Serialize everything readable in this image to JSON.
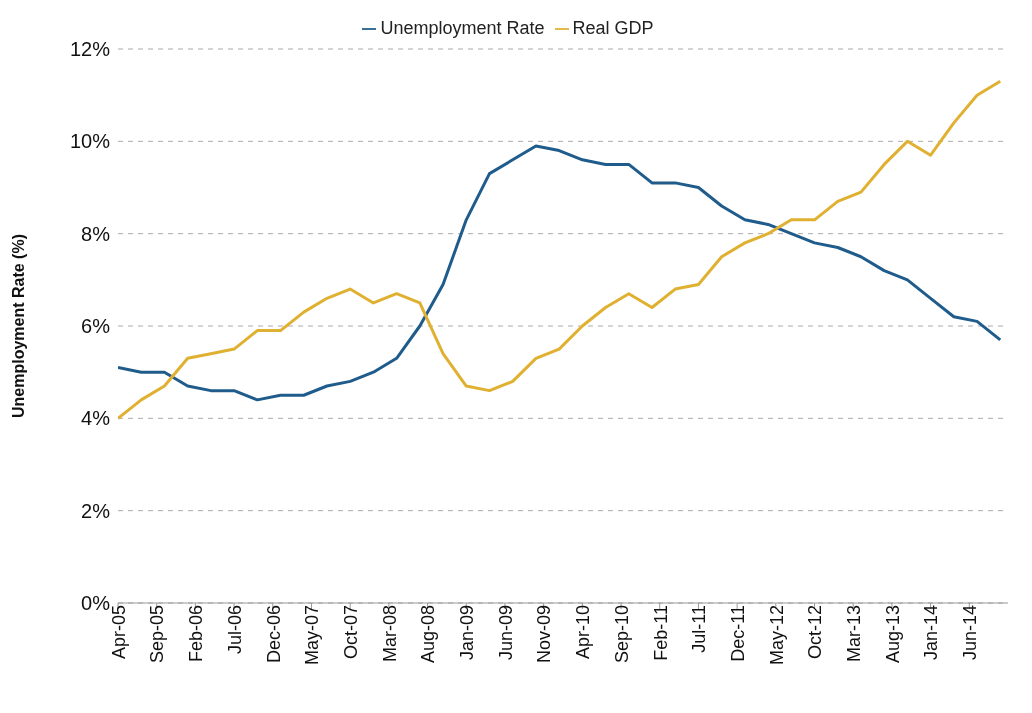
{
  "chart_data": {
    "type": "line",
    "ylabel": "Unemployment Rate (%)",
    "x": [
      "2005-04",
      "2005-07",
      "2005-10",
      "2006-01",
      "2006-04",
      "2006-07",
      "2006-10",
      "2007-01",
      "2007-04",
      "2007-07",
      "2007-10",
      "2008-01",
      "2008-04",
      "2008-07",
      "2008-10",
      "2009-01",
      "2009-04",
      "2009-07",
      "2009-10",
      "2010-01",
      "2010-04",
      "2010-07",
      "2010-10",
      "2011-01",
      "2011-04",
      "2011-07",
      "2011-10",
      "2012-01",
      "2012-04",
      "2012-07",
      "2012-10",
      "2013-01",
      "2013-04",
      "2013-07",
      "2013-10",
      "2014-01",
      "2014-04",
      "2014-07",
      "2014-10"
    ],
    "series": [
      {
        "name": "Unemployment Rate",
        "color": "#1f5c8b",
        "values": [
          5.1,
          5.0,
          5.0,
          4.7,
          4.6,
          4.6,
          4.4,
          4.5,
          4.5,
          4.7,
          4.8,
          5.0,
          5.3,
          6.0,
          6.9,
          8.3,
          9.3,
          9.6,
          9.9,
          9.8,
          9.6,
          9.5,
          9.5,
          9.1,
          9.1,
          9.0,
          8.6,
          8.3,
          8.2,
          8.0,
          7.8,
          7.7,
          7.5,
          7.2,
          7.0,
          6.6,
          6.2,
          6.1,
          5.7
        ]
      },
      {
        "name": "Real GDP",
        "color": "#e0b030",
        "values": [
          4.0,
          4.4,
          4.7,
          5.3,
          5.4,
          5.5,
          5.9,
          5.9,
          6.3,
          6.6,
          6.8,
          6.5,
          6.7,
          6.5,
          5.4,
          4.7,
          4.6,
          4.8,
          5.3,
          5.5,
          6.0,
          6.4,
          6.7,
          6.4,
          6.8,
          6.9,
          7.5,
          7.8,
          8.0,
          8.3,
          8.3,
          8.7,
          8.9,
          9.5,
          10.0,
          9.7,
          10.4,
          11.0,
          11.3
        ]
      }
    ],
    "xlim": [
      "2005-04",
      "2014-11"
    ],
    "xticks": [
      {
        "value": "2005-04",
        "label": "Apr-05"
      },
      {
        "value": "2005-09",
        "label": "Sep-05"
      },
      {
        "value": "2006-02",
        "label": "Feb-06"
      },
      {
        "value": "2006-07",
        "label": "Jul-06"
      },
      {
        "value": "2006-12",
        "label": "Dec-06"
      },
      {
        "value": "2007-05",
        "label": "May-07"
      },
      {
        "value": "2007-10",
        "label": "Oct-07"
      },
      {
        "value": "2008-03",
        "label": "Mar-08"
      },
      {
        "value": "2008-08",
        "label": "Aug-08"
      },
      {
        "value": "2009-01",
        "label": "Jan-09"
      },
      {
        "value": "2009-06",
        "label": "Jun-09"
      },
      {
        "value": "2009-11",
        "label": "Nov-09"
      },
      {
        "value": "2010-04",
        "label": "Apr-10"
      },
      {
        "value": "2010-09",
        "label": "Sep-10"
      },
      {
        "value": "2011-02",
        "label": "Feb-11"
      },
      {
        "value": "2011-07",
        "label": "Jul-11"
      },
      {
        "value": "2011-12",
        "label": "Dec-11"
      },
      {
        "value": "2012-05",
        "label": "May-12"
      },
      {
        "value": "2012-10",
        "label": "Oct-12"
      },
      {
        "value": "2013-03",
        "label": "Mar-13"
      },
      {
        "value": "2013-08",
        "label": "Aug-13"
      },
      {
        "value": "2014-01",
        "label": "Jan-14"
      },
      {
        "value": "2014-06",
        "label": "Jun-14"
      }
    ],
    "ylim": [
      0,
      12
    ],
    "yticks": [
      {
        "value": 0,
        "label": "0%"
      },
      {
        "value": 2,
        "label": "2%"
      },
      {
        "value": 4,
        "label": "4%"
      },
      {
        "value": 6,
        "label": "6%"
      },
      {
        "value": 8,
        "label": "8%"
      },
      {
        "value": 10,
        "label": "10%"
      },
      {
        "value": 12,
        "label": "12%"
      }
    ],
    "grid": "y",
    "legend": "top",
    "marker": "none",
    "line_style": "solid"
  }
}
